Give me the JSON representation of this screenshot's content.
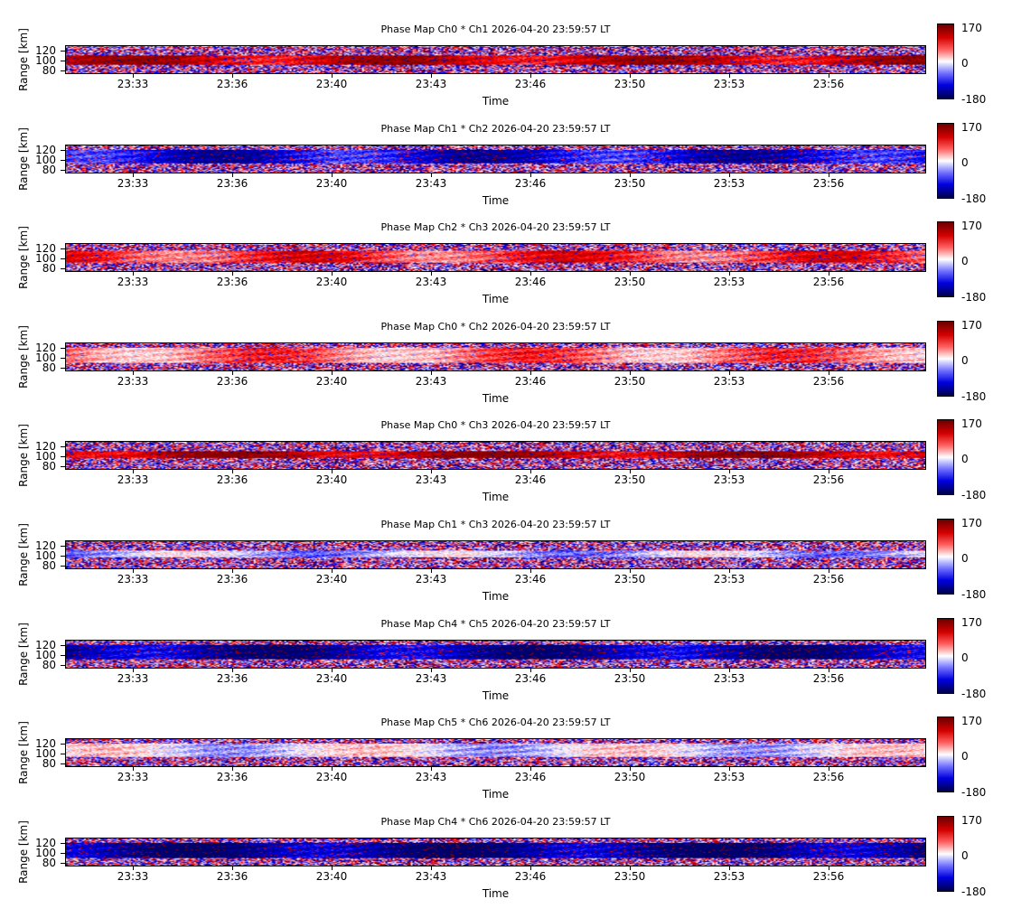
{
  "colors": {
    "neg": "#0000c8",
    "pos": "#d40000",
    "mid": "#ffffff"
  },
  "common": {
    "xlabel": "Time",
    "ylabel": "Range [km]",
    "yticks": [
      "120",
      "100",
      "80"
    ],
    "xticks": [
      "23:33",
      "23:36",
      "23:40",
      "23:43",
      "23:46",
      "23:50",
      "23:53",
      "23:56"
    ],
    "colorbar": {
      "max_label": "170",
      "mid_label": "0",
      "min_label": "-180"
    }
  },
  "panels": [
    {
      "title": "Phase Map Ch0 * Ch1 2026-04-20 23:59:57 LT"
    },
    {
      "title": "Phase Map Ch1 * Ch2 2026-04-20 23:59:57 LT"
    },
    {
      "title": "Phase Map Ch2 * Ch3 2026-04-20 23:59:57 LT"
    },
    {
      "title": "Phase Map Ch0 * Ch2 2026-04-20 23:59:57 LT"
    },
    {
      "title": "Phase Map Ch0 * Ch3 2026-04-20 23:59:57 LT"
    },
    {
      "title": "Phase Map Ch1 * Ch3 2026-04-20 23:59:57 LT"
    },
    {
      "title": "Phase Map Ch4 * Ch5 2026-04-20 23:59:57 LT"
    },
    {
      "title": "Phase Map Ch5 * Ch6 2026-04-20 23:59:57 LT"
    },
    {
      "title": "Phase Map Ch4 * Ch6 2026-04-20 23:59:57 LT"
    }
  ],
  "chart_data": [
    {
      "type": "heatmap",
      "title": "Phase Map Ch0 * Ch1 2026-04-20 23:59:57 LT",
      "xlabel": "Time",
      "ylabel": "Range [km]",
      "x_range": [
        "23:30",
        "23:59:57"
      ],
      "ylim": [
        78,
        131
      ],
      "clim": [
        -180,
        170
      ],
      "colormap": "seismic (blue-white-red)",
      "layer_km": [
        95,
        113
      ],
      "layer_phase_deg": 140,
      "layer_pattern": "mostly red with scattered blue patches"
    },
    {
      "type": "heatmap",
      "title": "Phase Map Ch1 * Ch2 2026-04-20 23:59:57 LT",
      "xlabel": "Time",
      "ylabel": "Range [km]",
      "x_range": [
        "23:30",
        "23:59:57"
      ],
      "ylim": [
        78,
        131
      ],
      "clim": [
        -180,
        170
      ],
      "colormap": "seismic (blue-white-red)",
      "layer_km": [
        97,
        122
      ],
      "layer_phase_deg": -120,
      "layer_pattern": "uniform blue band"
    },
    {
      "type": "heatmap",
      "title": "Phase Map Ch2 * Ch3 2026-04-20 23:59:57 LT",
      "xlabel": "Time",
      "ylabel": "Range [km]",
      "x_range": [
        "23:30",
        "23:59:57"
      ],
      "ylim": [
        78,
        131
      ],
      "clim": [
        -180,
        170
      ],
      "colormap": "seismic (blue-white-red)",
      "layer_km": [
        95,
        117
      ],
      "layer_phase_deg": 90,
      "layer_pattern": "red band, blue noise above and below"
    },
    {
      "type": "heatmap",
      "title": "Phase Map Ch0 * Ch2 2026-04-20 23:59:57 LT",
      "xlabel": "Time",
      "ylabel": "Range [km]",
      "x_range": [
        "23:30",
        "23:59:57"
      ],
      "ylim": [
        78,
        131
      ],
      "clim": [
        -180,
        170
      ],
      "colormap": "seismic (blue-white-red)",
      "layer_km": [
        93,
        123
      ],
      "layer_phase_deg": 60,
      "layer_pattern": "mixed light red and white"
    },
    {
      "type": "heatmap",
      "title": "Phase Map Ch0 * Ch3 2026-04-20 23:59:57 LT",
      "xlabel": "Time",
      "ylabel": "Range [km]",
      "x_range": [
        "23:30",
        "23:59:57"
      ],
      "ylim": [
        78,
        131
      ],
      "clim": [
        -180,
        170
      ],
      "colormap": "seismic (blue-white-red)",
      "layer_km": [
        99,
        112
      ],
      "layer_phase_deg": 150,
      "layer_pattern": "thin red band"
    },
    {
      "type": "heatmap",
      "title": "Phase Map Ch1 * Ch3 2026-04-20 23:59:57 LT",
      "xlabel": "Time",
      "ylabel": "Range [km]",
      "x_range": [
        "23:30",
        "23:59:57"
      ],
      "ylim": [
        78,
        131
      ],
      "clim": [
        -180,
        170
      ],
      "colormap": "seismic (blue-white-red)",
      "layer_km": [
        100,
        112
      ],
      "layer_phase_deg": -30,
      "layer_pattern": "faint light-blue band"
    },
    {
      "type": "heatmap",
      "title": "Phase Map Ch4 * Ch5 2026-04-20 23:59:57 LT",
      "xlabel": "Time",
      "ylabel": "Range [km]",
      "x_range": [
        "23:30",
        "23:59:57"
      ],
      "ylim": [
        78,
        131
      ],
      "clim": [
        -180,
        170
      ],
      "colormap": "seismic (blue-white-red)",
      "layer_km": [
        95,
        122
      ],
      "layer_phase_deg": -150,
      "layer_pattern": "dark blue and dark red patches"
    },
    {
      "type": "heatmap",
      "title": "Phase Map Ch5 * Ch6 2026-04-20 23:59:57 LT",
      "xlabel": "Time",
      "ylabel": "Range [km]",
      "x_range": [
        "23:30",
        "23:59:57"
      ],
      "ylim": [
        78,
        131
      ],
      "clim": [
        -180,
        170
      ],
      "colormap": "seismic (blue-white-red)",
      "layer_km": [
        96,
        122
      ],
      "layer_phase_deg": -10,
      "layer_pattern": "pale white/light-blue band"
    },
    {
      "type": "heatmap",
      "title": "Phase Map Ch4 * Ch6 2026-04-20 23:59:57 LT",
      "xlabel": "Time",
      "ylabel": "Range [km]",
      "x_range": [
        "23:30",
        "23:59:57"
      ],
      "ylim": [
        78,
        131
      ],
      "clim": [
        -180,
        170
      ],
      "colormap": "seismic (blue-white-red)",
      "layer_km": [
        93,
        122
      ],
      "layer_phase_deg": -160,
      "layer_pattern": "dark blue with red streaks"
    }
  ]
}
